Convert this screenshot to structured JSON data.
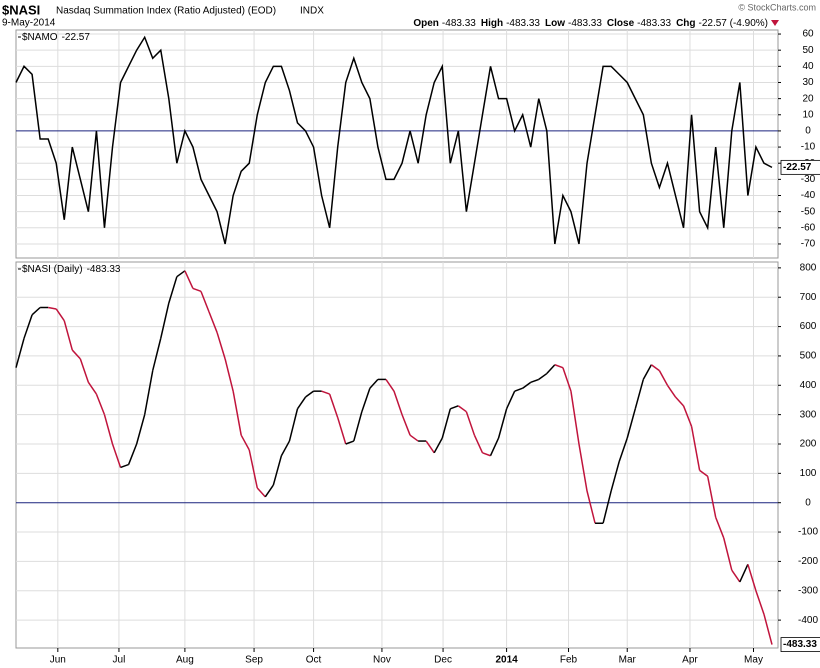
{
  "header": {
    "symbol": "$NASI",
    "name": "Nasdaq Summation Index (Ratio Adjusted) (EOD)",
    "exchange": "INDX",
    "date": "9-May-2014",
    "copyright": "© StockCharts.com",
    "quote": [
      {
        "label": "Open",
        "value": "-483.33"
      },
      {
        "label": "High",
        "value": "-483.33"
      },
      {
        "label": "Low",
        "value": "-483.33"
      },
      {
        "label": "Close",
        "value": "-483.33"
      },
      {
        "label": "Chg",
        "value": "-22.57 (-4.90%)"
      }
    ]
  },
  "chart_data": [
    {
      "type": "line",
      "xlim": [
        0,
        94
      ],
      "ylim": [
        -78.7,
        62.5
      ],
      "yticks": [
        60,
        50,
        40,
        30,
        20,
        10,
        0,
        -10,
        -20,
        -30,
        -40,
        -50,
        -60,
        -70
      ],
      "grid": true,
      "series": [
        {
          "name": "$NAMO",
          "color": "#000000",
          "values": [
            30,
            40,
            35,
            -5,
            -5,
            -20,
            -55,
            -10,
            -30,
            -50,
            0,
            -60,
            -10,
            30,
            40,
            50,
            58,
            45,
            50,
            20,
            -20,
            0,
            -10,
            -30,
            -40,
            -50,
            -70,
            -40,
            -25,
            -20,
            10,
            30,
            40,
            40,
            25,
            5,
            0,
            -10,
            -40,
            -60,
            -10,
            30,
            45,
            30,
            20,
            -10,
            -30,
            -30,
            -20,
            0,
            -20,
            10,
            30,
            40,
            -20,
            0,
            -50,
            -20,
            10,
            40,
            20,
            20,
            0,
            10,
            -10,
            20,
            0,
            -70,
            -40,
            -50,
            -70,
            -20,
            10,
            40,
            40,
            35,
            30,
            20,
            10,
            -20,
            -35,
            -20,
            -40,
            -60,
            10,
            -50,
            -60,
            -10,
            -60,
            0,
            30,
            -40,
            -10,
            -20,
            -22.57
          ]
        }
      ]
    },
    {
      "type": "line",
      "xlim": [
        0,
        94
      ],
      "ylim": [
        -495,
        820
      ],
      "yticks": [
        800,
        700,
        600,
        500,
        400,
        300,
        200,
        100,
        0,
        -100,
        -200,
        -300,
        -400
      ],
      "grid": true,
      "xticks": [
        {
          "value": 5.2,
          "label": "Jun"
        },
        {
          "value": 12.8,
          "label": "Jul"
        },
        {
          "value": 21,
          "label": "Aug"
        },
        {
          "value": 29.6,
          "label": "Sep"
        },
        {
          "value": 37,
          "label": "Oct"
        },
        {
          "value": 45.5,
          "label": "Nov"
        },
        {
          "value": 53.1,
          "label": "Dec"
        },
        {
          "value": 61,
          "label": "2014"
        },
        {
          "value": 68.7,
          "label": "Feb"
        },
        {
          "value": 76,
          "label": "Mar"
        },
        {
          "value": 83.8,
          "label": "Apr"
        },
        {
          "value": 91.7,
          "label": "May"
        }
      ],
      "series": [
        {
          "name": "$NASI (Daily)",
          "color": "#000000",
          "down_color": "#c0143c",
          "values": [
            460,
            560,
            640,
            665,
            665,
            660,
            620,
            520,
            490,
            410,
            370,
            300,
            200,
            120,
            130,
            200,
            300,
            450,
            560,
            680,
            770,
            790,
            730,
            720,
            650,
            580,
            490,
            380,
            230,
            180,
            50,
            20,
            60,
            160,
            210,
            320,
            360,
            380,
            380,
            370,
            290,
            200,
            210,
            310,
            390,
            420,
            420,
            380,
            300,
            230,
            210,
            210,
            170,
            220,
            320,
            330,
            310,
            230,
            170,
            160,
            220,
            320,
            380,
            390,
            410,
            420,
            440,
            470,
            460,
            380,
            200,
            40,
            -70,
            -70,
            40,
            140,
            220,
            320,
            420,
            470,
            450,
            400,
            360,
            330,
            260,
            110,
            90,
            -50,
            -120,
            -230,
            -270,
            -210,
            -300,
            -380,
            -483.33
          ]
        }
      ]
    }
  ]
}
